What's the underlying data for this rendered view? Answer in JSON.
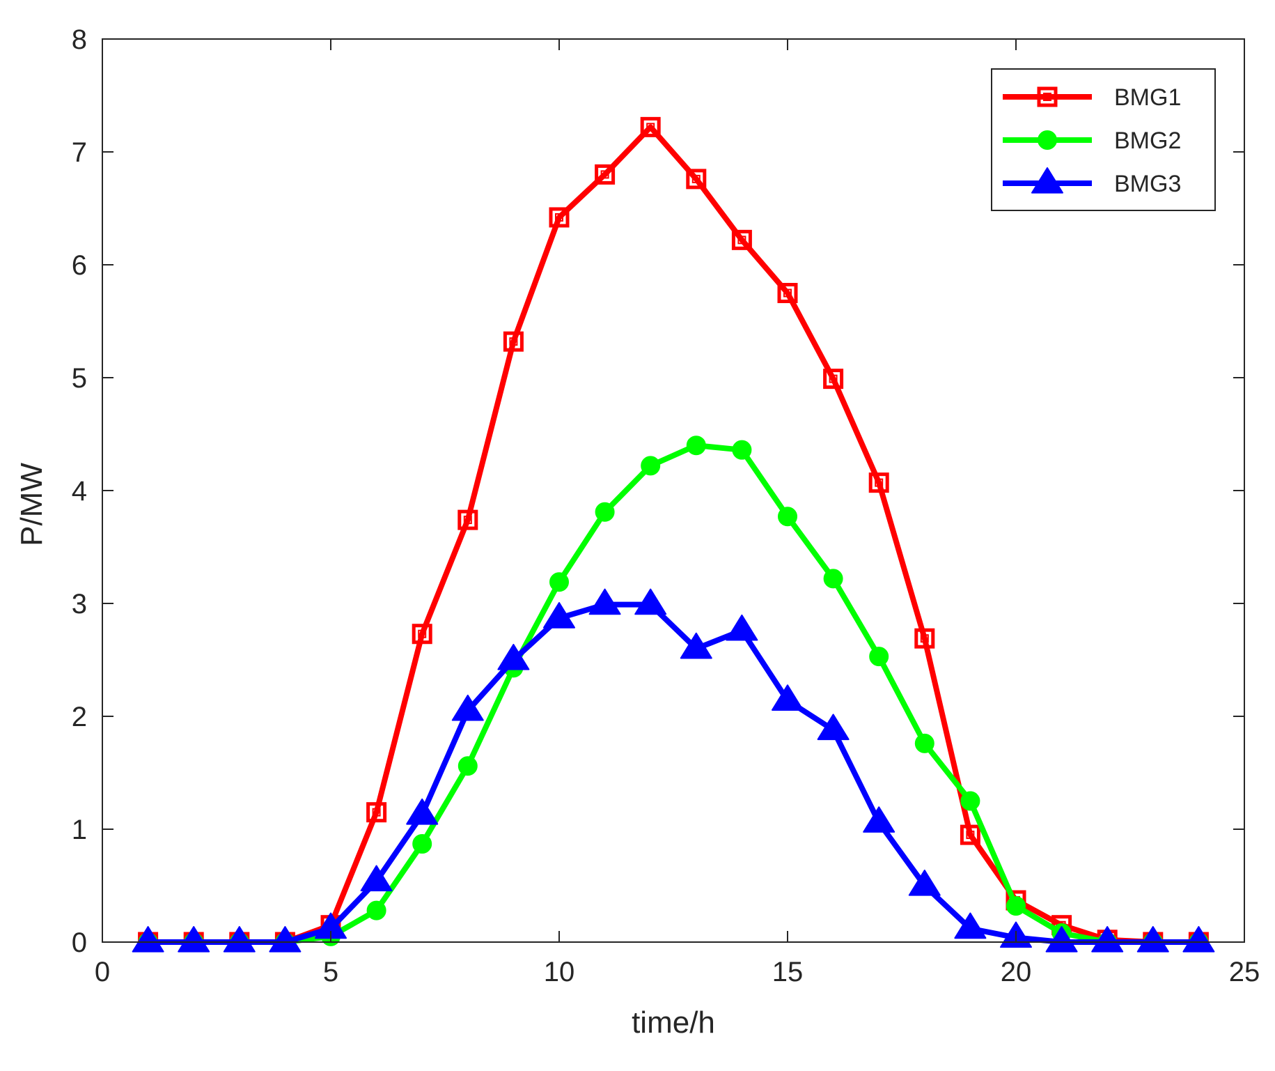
{
  "chart_data": {
    "type": "line",
    "title": "",
    "xlabel": "time/h",
    "ylabel": "P/MW",
    "xlim": [
      0,
      25
    ],
    "ylim": [
      0,
      8
    ],
    "xticks": [
      0,
      5,
      10,
      15,
      20,
      25
    ],
    "yticks": [
      0,
      1,
      2,
      3,
      4,
      5,
      6,
      7,
      8
    ],
    "grid": false,
    "legend_position": "top-right",
    "x": [
      1,
      2,
      3,
      4,
      5,
      6,
      7,
      8,
      9,
      10,
      11,
      12,
      13,
      14,
      15,
      16,
      17,
      18,
      19,
      20,
      21,
      22,
      23,
      24
    ],
    "series": [
      {
        "name": "BMG1",
        "color": "#ff0000",
        "marker": "square",
        "values": [
          0,
          0,
          0,
          0,
          0.15,
          1.15,
          2.73,
          3.74,
          5.32,
          6.42,
          6.8,
          7.22,
          6.76,
          6.22,
          5.75,
          4.99,
          4.07,
          2.69,
          0.95,
          0.37,
          0.15,
          0.02,
          0,
          0
        ]
      },
      {
        "name": "BMG2",
        "color": "#00ff00",
        "marker": "circle",
        "values": [
          0,
          0,
          0,
          0,
          0.05,
          0.28,
          0.87,
          1.56,
          2.43,
          3.19,
          3.81,
          4.22,
          4.4,
          4.36,
          3.77,
          3.22,
          2.53,
          1.76,
          1.25,
          0.32,
          0.08,
          0,
          0,
          0
        ]
      },
      {
        "name": "BMG3",
        "color": "#0000ff",
        "marker": "triangle",
        "values": [
          0,
          0,
          0,
          0,
          0.12,
          0.54,
          1.13,
          2.05,
          2.5,
          2.87,
          2.99,
          2.99,
          2.6,
          2.76,
          2.14,
          1.88,
          1.06,
          0.5,
          0.12,
          0.04,
          0,
          0,
          0,
          0
        ]
      }
    ]
  }
}
